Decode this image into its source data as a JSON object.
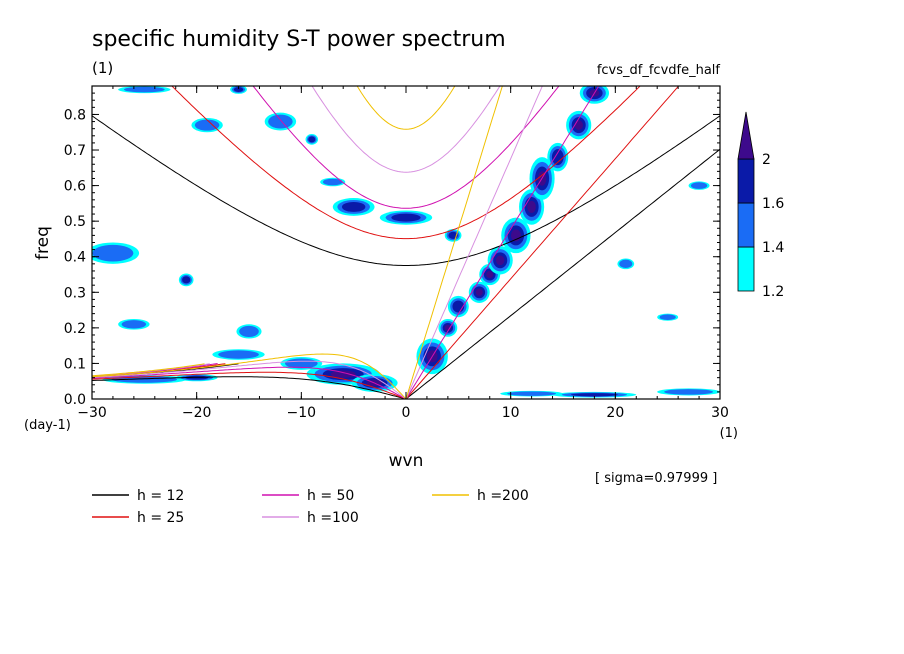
{
  "chart_data": {
    "type": "heatmap",
    "title": "specific humidity S-T power spectrum",
    "unit_label": "(1)",
    "subtitle_right": "fcvs_df_fcvdfe_half",
    "xlabel": "wvn",
    "ylabel": "freq",
    "x_unit": "(1)",
    "y_unit": "(day-1)",
    "xlim": [
      -30,
      30
    ],
    "ylim": [
      0,
      0.88
    ],
    "xticks": [
      -30,
      -20,
      -10,
      0,
      10,
      20,
      30
    ],
    "yticks": [
      0.0,
      0.1,
      0.2,
      0.3,
      0.4,
      0.5,
      0.6,
      0.7,
      0.8
    ],
    "x_tick_labels": [
      "−30",
      "−20",
      "−10",
      "0",
      "10",
      "20",
      "30"
    ],
    "y_tick_labels": [
      "0.0",
      "0.1",
      "0.2",
      "0.3",
      "0.4",
      "0.5",
      "0.6",
      "0.7",
      "0.8"
    ],
    "sigma_label": "[ sigma=0.97999 ]",
    "colorbar": {
      "levels": [
        "1.2",
        "1.4",
        "1.6",
        "2"
      ],
      "colors": [
        "#00ffff",
        "#1a6cf5",
        "#0a1aa8",
        "#3d0a8c"
      ]
    },
    "legend": [
      {
        "label": "h = 12",
        "color": "#000000"
      },
      {
        "label": "h = 25",
        "color": "#e01010"
      },
      {
        "label": "h = 50",
        "color": "#d010b0"
      },
      {
        "label": "h =100",
        "color": "#d890e0"
      },
      {
        "label": "h =200",
        "color": "#f0c000"
      }
    ],
    "dispersion_curves": [
      {
        "h": 12,
        "color": "#000000"
      },
      {
        "h": 25,
        "color": "#e01010"
      },
      {
        "h": 50,
        "color": "#d010b0"
      },
      {
        "h": 100,
        "color": "#d890e0"
      },
      {
        "h": 200,
        "color": "#f0c000"
      }
    ],
    "power_blobs": [
      {
        "x": 2.5,
        "y": 0.12,
        "rx": 1.5,
        "ry": 0.05,
        "level": 3
      },
      {
        "x": 4,
        "y": 0.2,
        "rx": 0.9,
        "ry": 0.025,
        "level": 3
      },
      {
        "x": 5,
        "y": 0.26,
        "rx": 1.0,
        "ry": 0.03,
        "level": 2
      },
      {
        "x": 7,
        "y": 0.3,
        "rx": 1.0,
        "ry": 0.03,
        "level": 3
      },
      {
        "x": 8,
        "y": 0.35,
        "rx": 1.0,
        "ry": 0.03,
        "level": 3
      },
      {
        "x": 9,
        "y": 0.39,
        "rx": 1.2,
        "ry": 0.04,
        "level": 3
      },
      {
        "x": 10.5,
        "y": 0.46,
        "rx": 1.4,
        "ry": 0.05,
        "level": 3
      },
      {
        "x": 12,
        "y": 0.54,
        "rx": 1.2,
        "ry": 0.05,
        "level": 3
      },
      {
        "x": 13,
        "y": 0.62,
        "rx": 1.2,
        "ry": 0.06,
        "level": 3
      },
      {
        "x": 14.5,
        "y": 0.68,
        "rx": 1.0,
        "ry": 0.04,
        "level": 2
      },
      {
        "x": 16.5,
        "y": 0.77,
        "rx": 1.2,
        "ry": 0.04,
        "level": 3
      },
      {
        "x": 18,
        "y": 0.86,
        "rx": 1.4,
        "ry": 0.03,
        "level": 3
      },
      {
        "x": -6,
        "y": 0.07,
        "rx": 3.5,
        "ry": 0.03,
        "level": 3
      },
      {
        "x": -3,
        "y": 0.045,
        "rx": 2.2,
        "ry": 0.025,
        "level": 3
      },
      {
        "x": -10,
        "y": 0.1,
        "rx": 2.0,
        "ry": 0.018,
        "level": 1
      },
      {
        "x": -16,
        "y": 0.125,
        "rx": 2.5,
        "ry": 0.015,
        "level": 1
      },
      {
        "x": -25,
        "y": 0.055,
        "rx": 4,
        "ry": 0.012,
        "level": 1
      },
      {
        "x": -20,
        "y": 0.06,
        "rx": 2,
        "ry": 0.01,
        "level": 2
      },
      {
        "x": -21,
        "y": 0.335,
        "rx": 0.7,
        "ry": 0.018,
        "level": 2
      },
      {
        "x": -5,
        "y": 0.54,
        "rx": 2,
        "ry": 0.025,
        "level": 2
      },
      {
        "x": 0,
        "y": 0.51,
        "rx": 2.5,
        "ry": 0.02,
        "level": 2
      },
      {
        "x": -9,
        "y": 0.73,
        "rx": 0.6,
        "ry": 0.015,
        "level": 2
      },
      {
        "x": -16,
        "y": 0.87,
        "rx": 0.8,
        "ry": 0.012,
        "level": 2
      },
      {
        "x": 4.5,
        "y": 0.46,
        "rx": 0.8,
        "ry": 0.018,
        "level": 2
      },
      {
        "x": -28,
        "y": 0.41,
        "rx": 2.5,
        "ry": 0.03,
        "level": 1
      },
      {
        "x": -19,
        "y": 0.77,
        "rx": 1.5,
        "ry": 0.02,
        "level": 1
      },
      {
        "x": -12,
        "y": 0.78,
        "rx": 1.5,
        "ry": 0.025,
        "level": 1
      },
      {
        "x": -26,
        "y": 0.21,
        "rx": 1.5,
        "ry": 0.015,
        "level": 1
      },
      {
        "x": -15,
        "y": 0.19,
        "rx": 1.2,
        "ry": 0.02,
        "level": 1
      },
      {
        "x": 18,
        "y": 0.012,
        "rx": 4,
        "ry": 0.008,
        "level": 2
      },
      {
        "x": 12,
        "y": 0.015,
        "rx": 3,
        "ry": 0.008,
        "level": 1
      },
      {
        "x": 27,
        "y": 0.02,
        "rx": 3,
        "ry": 0.01,
        "level": 1
      },
      {
        "x": 21,
        "y": 0.38,
        "rx": 0.8,
        "ry": 0.015,
        "level": 1
      },
      {
        "x": -25,
        "y": 0.87,
        "rx": 2.5,
        "ry": 0.01,
        "level": 1
      },
      {
        "x": 25,
        "y": 0.23,
        "rx": 1,
        "ry": 0.01,
        "level": 1
      },
      {
        "x": -7,
        "y": 0.61,
        "rx": 1.2,
        "ry": 0.012,
        "level": 1
      },
      {
        "x": 28,
        "y": 0.6,
        "rx": 1,
        "ry": 0.012,
        "level": 1
      }
    ]
  }
}
